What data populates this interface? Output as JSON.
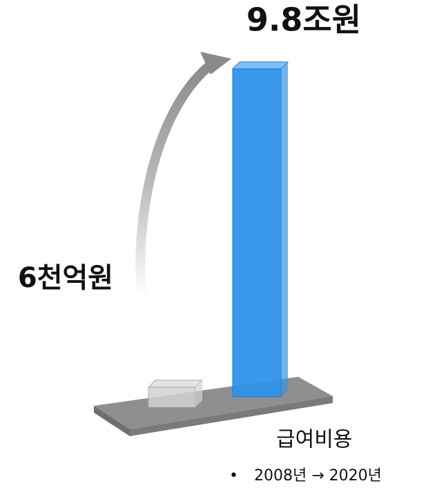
{
  "chart_data": {
    "type": "bar",
    "values": [
      0.6,
      9.8
    ],
    "value_labels": [
      "6천억원",
      "9.8조원"
    ],
    "colors": [
      "#d4d2d4",
      "#2f94ea"
    ],
    "x_label": "급여비용",
    "note": "2008년 → 2020년"
  }
}
